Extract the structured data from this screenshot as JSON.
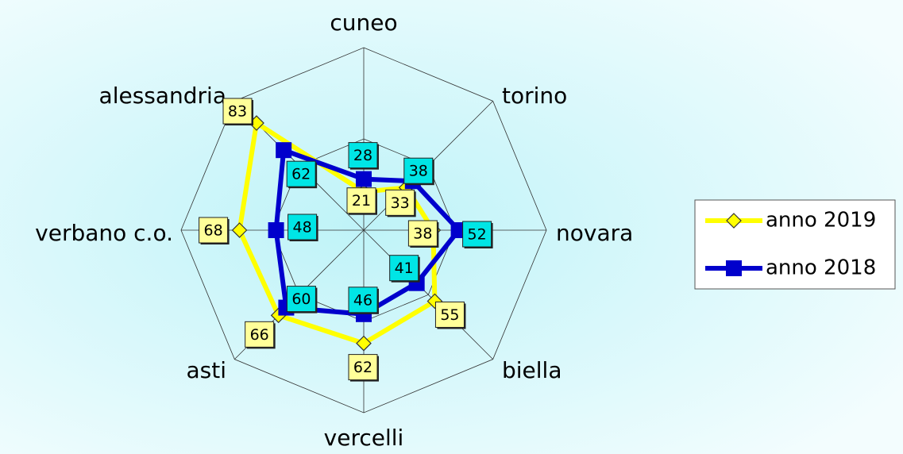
{
  "chart_data": {
    "type": "radar",
    "categories": [
      "cuneo",
      "torino",
      "novara",
      "biella",
      "vercelli",
      "asti",
      "verbano c.o.",
      "alessandria"
    ],
    "series": [
      {
        "name": "anno 2019",
        "color": "#ffff00",
        "label_color": "#ffff99",
        "values": [
          21,
          33,
          38,
          55,
          62,
          66,
          68,
          83
        ]
      },
      {
        "name": "anno 2018",
        "color": "#0000cc",
        "label_color": "#00e5e5",
        "values": [
          28,
          38,
          52,
          41,
          46,
          60,
          48,
          62
        ]
      }
    ],
    "ylim": [
      0,
      100
    ],
    "yticks": [
      0,
      50,
      100
    ],
    "grid": true,
    "legend": "right"
  }
}
